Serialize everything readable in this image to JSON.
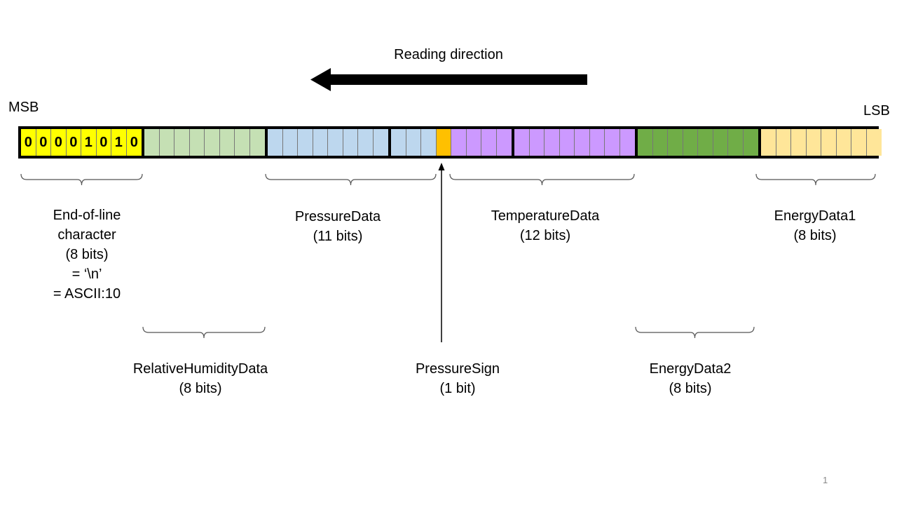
{
  "title": "Reading direction",
  "msb_label": "MSB",
  "lsb_label": "LSB",
  "page_number": "1",
  "eol_bits": [
    "0",
    "0",
    "0",
    "0",
    "1",
    "0",
    "1",
    "0"
  ],
  "fields": [
    {
      "id": "eol",
      "bits": 8,
      "color": "#ffff00"
    },
    {
      "id": "humidity",
      "bits": 8,
      "color": "#c5e0b4"
    },
    {
      "id": "pressure",
      "bits": 11,
      "color": "#bdd7ee"
    },
    {
      "id": "sign",
      "bits": 1,
      "color": "#ffc000"
    },
    {
      "id": "temperature",
      "bits": 12,
      "color": "#cc99ff"
    },
    {
      "id": "energy2",
      "bits": 8,
      "color": "#70ad47"
    },
    {
      "id": "energy1",
      "bits": 8,
      "color": "#ffe699"
    }
  ],
  "labels": {
    "eol": [
      "End-of-line",
      "character",
      "(8 bits)",
      "= ‘\\n’",
      "= ASCII:10"
    ],
    "humidity": [
      "RelativeHumidityData",
      "(8 bits)"
    ],
    "pressure": [
      "PressureData",
      "(11 bits)"
    ],
    "sign": [
      "PressureSign",
      "(1 bit)"
    ],
    "temperature": [
      "TemperatureData",
      "(12 bits)"
    ],
    "energy2": [
      "EnergyData2",
      "(8 bits)"
    ],
    "energy1": [
      "EnergyData1",
      "(8 bits)"
    ]
  }
}
